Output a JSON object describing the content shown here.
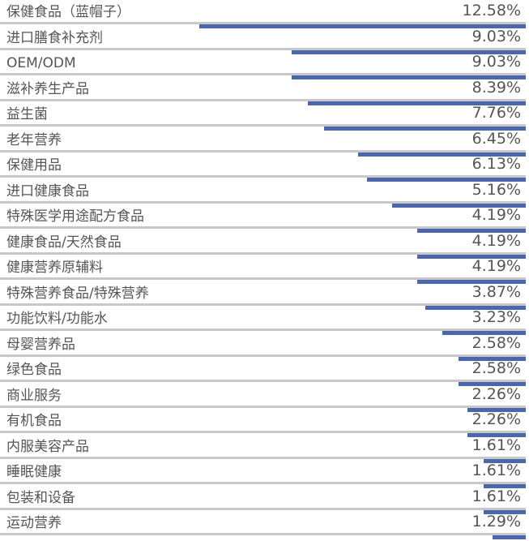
{
  "chart_data": {
    "type": "bar",
    "orientation": "horizontal",
    "categories": [
      "保健食品（蓝帽子）",
      "进口膳食补充剂",
      "OEM/ODM",
      "滋补养生产品",
      "益生菌",
      "老年营养",
      "保健用品",
      "进口健康食品",
      "特殊医学用途配方食品",
      "健康食品/天然食品",
      "健康营养原辅料",
      "特殊营养食品/特殊营养",
      "功能饮料/功能水",
      "母婴营养品",
      "绿色食品",
      "商业服务",
      "有机食品",
      "内服美容产品",
      "睡眠健康",
      "包装和设备",
      "运动营养"
    ],
    "values": [
      12.58,
      9.03,
      9.03,
      8.39,
      7.76,
      6.45,
      6.13,
      5.16,
      4.19,
      4.19,
      4.19,
      3.87,
      3.23,
      2.58,
      2.58,
      2.26,
      2.26,
      1.61,
      1.61,
      1.61,
      1.29
    ],
    "value_labels": [
      "12.58%",
      "9.03%",
      "9.03%",
      "8.39%",
      "7.76%",
      "6.45%",
      "6.13%",
      "5.16%",
      "4.19%",
      "4.19%",
      "4.19%",
      "3.87%",
      "3.23%",
      "2.58%",
      "2.58%",
      "2.26%",
      "2.26%",
      "1.61%",
      "1.61%",
      "1.61%",
      "1.29%"
    ],
    "unit": "%",
    "title": "",
    "xlabel": "",
    "ylabel": "",
    "grid": false,
    "legend": "none",
    "bar_color": "#4a66ad",
    "track_color": "#c8c8c8",
    "text_color": "#555555"
  }
}
